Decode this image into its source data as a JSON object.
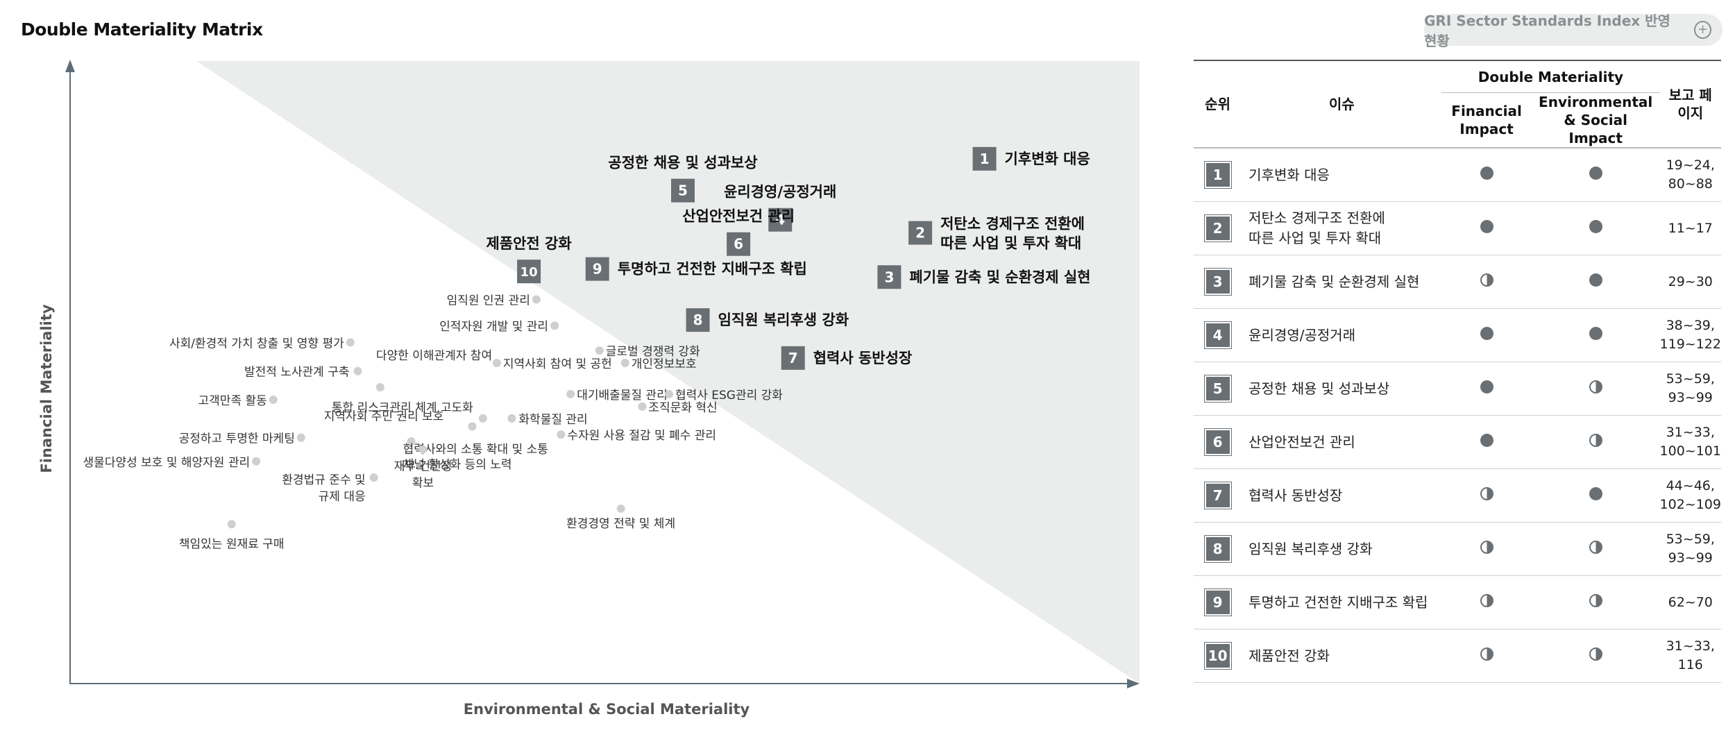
{
  "title": "Double Materiality Matrix",
  "gri_button": {
    "label": "GRI Sector Standards Index 반영 현황",
    "icon": "plus-circle-icon"
  },
  "colors": {
    "marker": "#6a6f73",
    "minor_dot": "#cfcfcf",
    "region": "#ebeded",
    "axis": "#5e6e78"
  },
  "chart_data": {
    "type": "scatter",
    "xlabel": "Environmental & Social Materiality",
    "ylabel": "Financial Materiality",
    "xlim": [
      0,
      100
    ],
    "ylim": [
      0,
      100
    ],
    "grid": false,
    "material_issues": [
      {
        "rank": "1",
        "label": "기후변화 대응",
        "x": 85.5,
        "y": 84.3
      },
      {
        "rank": "2",
        "label": "저탄소 경제구조 전환에 따른 사업 및 투자 확대",
        "x": 79.5,
        "y": 72.4
      },
      {
        "rank": "3",
        "label": "폐기물 감축 및 순환경제 실현",
        "x": 76.6,
        "y": 65.3
      },
      {
        "rank": "4",
        "label": "윤리경영/공정거래",
        "x": 66.4,
        "y": 74.5
      },
      {
        "rank": "5",
        "label": "공정한 채용 및 성과보상",
        "x": 57.3,
        "y": 79.2
      },
      {
        "rank": "6",
        "label": "산업안전보건 관리",
        "x": 62.5,
        "y": 70.6
      },
      {
        "rank": "7",
        "label": "협력사 동반성장",
        "x": 67.6,
        "y": 52.3
      },
      {
        "rank": "8",
        "label": "임직원 복리후생 강화",
        "x": 58.7,
        "y": 58.4
      },
      {
        "rank": "9",
        "label": "투명하고 건전한 지배구조 확립",
        "x": 49.3,
        "y": 66.6
      },
      {
        "rank": "10",
        "label": "제품안전 강화",
        "x": 42.9,
        "y": 66.2
      }
    ],
    "other_issues": [
      {
        "label": "임직원 인권 관리",
        "x": 43.6,
        "y": 61.7
      },
      {
        "label": "인적자원 개발 및 관리",
        "x": 45.3,
        "y": 57.5
      },
      {
        "label": "사회/환경적 가치 창출 및 영향 평가",
        "x": 26.2,
        "y": 54.8
      },
      {
        "label": "글로벌 경쟁력 강화",
        "x": 49.5,
        "y": 53.5
      },
      {
        "label": "지역사회 참여 및 공헌",
        "x": 39.9,
        "y": 51.5
      },
      {
        "label": "개인정보보호",
        "x": 51.9,
        "y": 51.5
      },
      {
        "label": "발전적 노사관계 구축",
        "x": 26.9,
        "y": 50.2
      },
      {
        "label": "다양한 이해관계자 참여",
        "x": 29.0,
        "y": 47.6
      },
      {
        "label": "고객만족 활동",
        "x": 19.0,
        "y": 45.6
      },
      {
        "label": "대기배출물질 관리",
        "x": 46.8,
        "y": 46.5
      },
      {
        "label": "협력사 ESG관리 강화",
        "x": 56.0,
        "y": 46.5
      },
      {
        "label": "조직문화 혁신",
        "x": 53.5,
        "y": 44.5
      },
      {
        "label": "통합 리스크관리 체계 고도화",
        "x": 38.6,
        "y": 42.6
      },
      {
        "label": "화학물질 관리",
        "x": 41.3,
        "y": 42.6
      },
      {
        "label": "지역사회 주민 권리 보호",
        "x": 37.6,
        "y": 41.3
      },
      {
        "label": "공정하고 투명한 마케팅",
        "x": 21.6,
        "y": 39.5
      },
      {
        "label": "수자원 사용 절감 및 폐수 관리",
        "x": 45.9,
        "y": 40.0
      },
      {
        "label": "협력사와의 소통 확대 및 소통 채널 활성화 등의 노력",
        "x": 31.9,
        "y": 38.9
      },
      {
        "label": "재무 건전성 확보",
        "x": 33.0,
        "y": 37.6
      },
      {
        "label": "생물다양성 보호 및 해양자원 관리",
        "x": 17.4,
        "y": 35.7
      },
      {
        "label": "환경법규 준수 및 규제 대응",
        "x": 28.4,
        "y": 33.1
      },
      {
        "label": "환경경영 전략 및 체계",
        "x": 51.5,
        "y": 28.1
      },
      {
        "label": "책임있는 원재료 구매",
        "x": 15.1,
        "y": 25.6
      }
    ]
  },
  "table": {
    "headers": {
      "rank": "순위",
      "issue": "이슈",
      "double": "Double Materiality",
      "financial": "Financial Impact",
      "env_social": "Environmental & Social Impact",
      "page": "보고 페이지"
    },
    "rows": [
      {
        "rank": "1",
        "issue": "기후변화 대응",
        "financial": "full",
        "env_social": "full",
        "page": "19~24, 80~88"
      },
      {
        "rank": "2",
        "issue": "저탄소 경제구조 전환에 따른 사업 및 투자 확대",
        "financial": "full",
        "env_social": "full",
        "page": "11~17"
      },
      {
        "rank": "3",
        "issue": "폐기물 감축 및 순환경제 실현",
        "financial": "half",
        "env_social": "full",
        "page": "29~30"
      },
      {
        "rank": "4",
        "issue": "윤리경영/공정거래",
        "financial": "full",
        "env_social": "full",
        "page": "38~39, 119~122"
      },
      {
        "rank": "5",
        "issue": "공정한 채용 및 성과보상",
        "financial": "full",
        "env_social": "half",
        "page": "53~59, 93~99"
      },
      {
        "rank": "6",
        "issue": "산업안전보건 관리",
        "financial": "full",
        "env_social": "half",
        "page": "31~33, 100~101"
      },
      {
        "rank": "7",
        "issue": "협력사 동반성장",
        "financial": "half",
        "env_social": "full",
        "page": "44~46, 102~109"
      },
      {
        "rank": "8",
        "issue": "임직원 복리후생 강화",
        "financial": "half",
        "env_social": "half",
        "page": "53~59, 93~99"
      },
      {
        "rank": "9",
        "issue": "투명하고 건전한 지배구조 확립",
        "financial": "half",
        "env_social": "half",
        "page": "62~70"
      },
      {
        "rank": "10",
        "issue": "제품안전 강화",
        "financial": "half",
        "env_social": "half",
        "page": "31~33, 116"
      }
    ]
  }
}
